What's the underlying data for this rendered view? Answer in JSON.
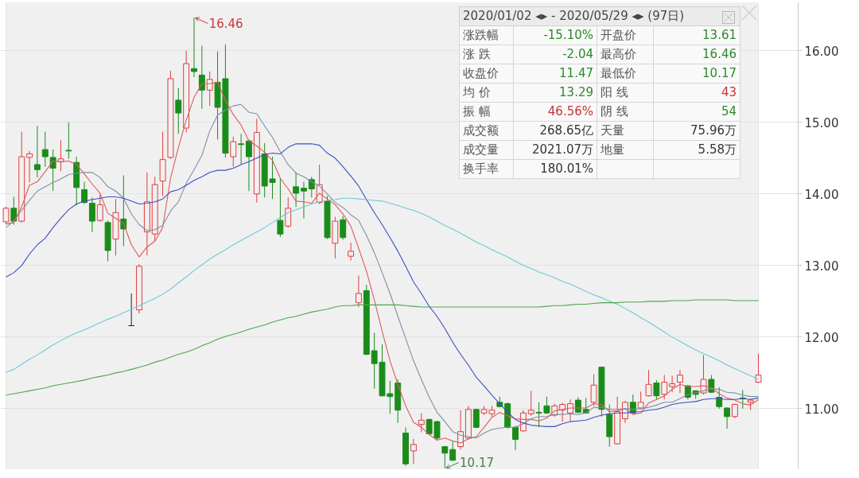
{
  "chart_data": {
    "type": "candlestick",
    "categories": [
      null,
      null,
      null,
      null,
      null,
      null,
      null,
      null,
      null,
      null,
      null,
      null,
      null,
      null,
      null,
      null,
      null,
      null,
      null,
      null,
      null,
      null,
      null,
      null,
      null,
      null,
      null,
      null,
      null,
      null,
      null,
      null,
      null,
      null,
      null,
      null,
      null,
      null,
      null,
      null,
      null,
      null,
      null,
      null,
      null,
      null,
      null,
      null,
      null,
      null,
      null,
      null,
      null,
      null,
      null,
      null,
      null,
      null,
      null,
      null,
      null,
      null,
      null,
      null,
      null,
      null,
      null,
      null,
      null,
      null,
      null,
      null,
      null,
      null,
      null,
      null,
      null,
      null,
      null,
      null,
      null,
      null,
      null,
      null,
      null,
      null,
      null,
      null,
      null,
      null,
      null,
      null,
      null,
      null,
      null,
      null,
      null
    ],
    "ohlc": [
      [
        13.61,
        13.82,
        13.58,
        13.8
      ],
      [
        13.8,
        13.96,
        13.57,
        13.62
      ],
      [
        13.62,
        14.87,
        13.6,
        14.52
      ],
      [
        14.51,
        14.6,
        14.16,
        14.56
      ],
      [
        14.41,
        14.95,
        14.23,
        14.34
      ],
      [
        14.62,
        14.87,
        14.38,
        14.52
      ],
      [
        14.51,
        14.62,
        14.04,
        14.36
      ],
      [
        14.45,
        14.75,
        14.32,
        14.49
      ],
      [
        14.61,
        15.0,
        14.49,
        14.6
      ],
      [
        14.44,
        14.52,
        13.84,
        14.09
      ],
      [
        14.06,
        14.17,
        13.86,
        13.88
      ],
      [
        13.87,
        13.95,
        13.47,
        13.62
      ],
      [
        13.63,
        13.99,
        13.61,
        13.85
      ],
      [
        13.6,
        13.63,
        13.06,
        13.21
      ],
      [
        13.37,
        13.93,
        13.14,
        13.74
      ],
      [
        13.65,
        14.26,
        13.27,
        13.51
      ],
      [
        12.16,
        12.61,
        12.16,
        12.16
      ],
      [
        12.38,
        13.02,
        12.33,
        12.99
      ],
      [
        13.47,
        14.3,
        13.14,
        13.89
      ],
      [
        13.44,
        14.24,
        13.34,
        14.13
      ],
      [
        14.18,
        14.87,
        13.97,
        14.48
      ],
      [
        14.51,
        15.72,
        14.49,
        15.61
      ],
      [
        15.31,
        15.48,
        14.84,
        15.13
      ],
      [
        14.92,
        16.0,
        14.86,
        15.82
      ],
      [
        15.75,
        16.46,
        15.63,
        15.71
      ],
      [
        15.66,
        16.07,
        15.19,
        15.45
      ],
      [
        15.45,
        15.71,
        15.23,
        15.6
      ],
      [
        15.56,
        15.99,
        14.76,
        15.21
      ],
      [
        15.61,
        16.09,
        14.51,
        14.57
      ],
      [
        14.52,
        14.8,
        14.38,
        14.73
      ],
      [
        14.7,
        14.84,
        14.42,
        14.69
      ],
      [
        14.74,
        14.76,
        14.04,
        14.52
      ],
      [
        14.0,
        15.05,
        13.88,
        14.86
      ],
      [
        14.56,
        14.71,
        13.95,
        14.11
      ],
      [
        14.21,
        14.52,
        13.93,
        14.16
      ],
      [
        13.63,
        14.21,
        13.4,
        13.44
      ],
      [
        13.55,
        13.95,
        13.53,
        13.8
      ],
      [
        14.1,
        14.3,
        13.82,
        14.01
      ],
      [
        14.08,
        14.17,
        13.66,
        14.04
      ],
      [
        14.2,
        14.24,
        13.95,
        14.07
      ],
      [
        13.88,
        14.41,
        13.86,
        14.13
      ],
      [
        13.9,
        13.97,
        13.37,
        13.39
      ],
      [
        13.31,
        13.68,
        13.1,
        13.62
      ],
      [
        13.64,
        13.69,
        13.36,
        13.39
      ],
      [
        13.13,
        13.32,
        13.07,
        13.2
      ],
      [
        12.48,
        12.86,
        12.42,
        12.61
      ],
      [
        12.65,
        12.73,
        11.75,
        11.76
      ],
      [
        11.81,
        12.06,
        11.28,
        11.63
      ],
      [
        11.65,
        11.9,
        11.17,
        11.18
      ],
      [
        11.21,
        11.39,
        10.93,
        11.17
      ],
      [
        11.36,
        11.41,
        10.8,
        10.98
      ],
      [
        10.66,
        10.74,
        10.2,
        10.23
      ],
      [
        10.41,
        10.58,
        10.23,
        10.5
      ],
      [
        10.78,
        10.94,
        10.67,
        10.84
      ],
      [
        10.85,
        10.86,
        10.64,
        10.65
      ],
      [
        10.82,
        10.83,
        10.56,
        10.59
      ],
      [
        10.47,
        10.48,
        10.17,
        10.38
      ],
      [
        10.43,
        10.54,
        10.27,
        10.28
      ],
      [
        10.47,
        10.98,
        10.43,
        10.68
      ],
      [
        10.59,
        11.04,
        10.57,
        10.99
      ],
      [
        10.99,
        11.0,
        10.73,
        10.74
      ],
      [
        10.94,
        11.04,
        10.91,
        10.99
      ],
      [
        10.93,
        11.04,
        10.89,
        10.98
      ],
      [
        11.09,
        11.17,
        11.02,
        11.03
      ],
      [
        11.07,
        11.09,
        10.72,
        10.74
      ],
      [
        10.74,
        10.76,
        10.42,
        10.57
      ],
      [
        10.69,
        10.98,
        10.68,
        10.94
      ],
      [
        10.93,
        11.25,
        10.9,
        10.98
      ],
      [
        10.95,
        11.09,
        10.74,
        10.94
      ],
      [
        11.04,
        11.17,
        10.93,
        10.94
      ],
      [
        10.91,
        11.07,
        10.89,
        11.04
      ],
      [
        10.98,
        11.08,
        10.82,
        11.06
      ],
      [
        10.94,
        11.13,
        10.83,
        11.07
      ],
      [
        11.12,
        11.16,
        10.94,
        10.95
      ],
      [
        10.99,
        11.15,
        10.93,
        10.94
      ],
      [
        11.09,
        11.48,
        11.04,
        11.33
      ],
      [
        11.58,
        11.59,
        10.89,
        10.99
      ],
      [
        10.92,
        11.06,
        10.47,
        10.61
      ],
      [
        10.51,
        11.17,
        10.5,
        10.96
      ],
      [
        10.86,
        11.11,
        10.8,
        11.09
      ],
      [
        11.09,
        11.2,
        10.93,
        10.94
      ],
      [
        11.01,
        11.24,
        10.99,
        11.09
      ],
      [
        11.18,
        11.54,
        11.17,
        11.34
      ],
      [
        11.36,
        11.4,
        11.12,
        11.18
      ],
      [
        11.2,
        11.47,
        11.13,
        11.37
      ],
      [
        11.31,
        11.46,
        11.23,
        11.35
      ],
      [
        11.37,
        11.54,
        11.22,
        11.47
      ],
      [
        11.32,
        11.33,
        11.13,
        11.16
      ],
      [
        11.25,
        11.26,
        11.14,
        11.2
      ],
      [
        11.22,
        11.75,
        11.2,
        11.41
      ],
      [
        11.41,
        11.47,
        11.22,
        11.23
      ],
      [
        11.16,
        11.3,
        11.0,
        11.03
      ],
      [
        11.01,
        11.02,
        10.72,
        10.89
      ],
      [
        10.89,
        11.07,
        10.87,
        11.06
      ],
      [
        11.15,
        11.26,
        11.0,
        11.14
      ],
      [
        11.09,
        11.14,
        10.98,
        11.12
      ],
      [
        11.37,
        11.77,
        11.36,
        11.47
      ]
    ],
    "colors": [
      "#e23c3c",
      "#1a8c1a",
      "#e23c3c",
      "#e23c3c",
      "#1a8c1a",
      "#1a8c1a",
      "#1a8c1a",
      "#e23c3c",
      "#1a8c1a",
      "#1a8c1a",
      "#1a8c1a",
      "#1a8c1a",
      "#e23c3c",
      "#1a8c1a",
      "#e23c3c",
      "#1a8c1a",
      "#222222",
      "#e23c3c",
      "#e23c3c",
      "#e23c3c",
      "#e23c3c",
      "#e23c3c",
      "#1a8c1a",
      "#e23c3c",
      "#1a8c1a",
      "#1a8c1a",
      "#e23c3c",
      "#1a8c1a",
      "#1a8c1a",
      "#e23c3c",
      "#1a8c1a",
      "#1a8c1a",
      "#e23c3c",
      "#1a8c1a",
      "#1a8c1a",
      "#1a8c1a",
      "#e23c3c",
      "#1a8c1a",
      "#1a8c1a",
      "#1a8c1a",
      "#e23c3c",
      "#1a8c1a",
      "#e23c3c",
      "#1a8c1a",
      "#e23c3c",
      "#e23c3c",
      "#1a8c1a",
      "#1a8c1a",
      "#1a8c1a",
      "#1a8c1a",
      "#1a8c1a",
      "#1a8c1a",
      "#e23c3c",
      "#e23c3c",
      "#1a8c1a",
      "#1a8c1a",
      "#1a8c1a",
      "#1a8c1a",
      "#e23c3c",
      "#e23c3c",
      "#1a8c1a",
      "#e23c3c",
      "#e23c3c",
      "#1a8c1a",
      "#1a8c1a",
      "#1a8c1a",
      "#e23c3c",
      "#e23c3c",
      "#1a8c1a",
      "#1a8c1a",
      "#e23c3c",
      "#e23c3c",
      "#e23c3c",
      "#1a8c1a",
      "#1a8c1a",
      "#e23c3c",
      "#1a8c1a",
      "#1a8c1a",
      "#e23c3c",
      "#e23c3c",
      "#1a8c1a",
      "#e23c3c",
      "#e23c3c",
      "#1a8c1a",
      "#e23c3c",
      "#e23c3c",
      "#e23c3c",
      "#1a8c1a",
      "#1a8c1a",
      "#e23c3c",
      "#1a8c1a",
      "#1a8c1a",
      "#1a8c1a",
      "#e23c3c",
      "#1a8c1a",
      "#e23c3c",
      "#e23c3c"
    ],
    "series": [
      {
        "type": "line",
        "color": "#e05a5a",
        "values": [
          13.58,
          13.6,
          13.82,
          14.12,
          14.17,
          14.31,
          14.46,
          14.45,
          14.46,
          14.41,
          14.28,
          14.14,
          14.01,
          13.73,
          13.66,
          13.59,
          13.29,
          13.12,
          13.26,
          13.34,
          13.53,
          14.22,
          14.65,
          15.03,
          15.35,
          15.54,
          15.54,
          15.56,
          15.31,
          15.11,
          14.96,
          14.74,
          14.67,
          14.58,
          14.47,
          14.22,
          14.07,
          13.9,
          13.89,
          13.87,
          14.01,
          13.93,
          13.85,
          13.72,
          13.55,
          13.24,
          12.92,
          12.52,
          12.08,
          11.67,
          11.34,
          11.04,
          10.81,
          10.74,
          10.64,
          10.56,
          10.59,
          10.55,
          10.52,
          10.58,
          10.61,
          10.74,
          10.88,
          10.95,
          10.9,
          10.86,
          10.85,
          10.85,
          10.83,
          10.87,
          10.97,
          10.99,
          11.01,
          11.01,
          11.01,
          11.07,
          11.06,
          10.96,
          10.97,
          11.0,
          10.92,
          10.94,
          11.08,
          11.13,
          11.18,
          11.27,
          11.34,
          11.31,
          11.31,
          11.32,
          11.29,
          11.21,
          11.15,
          11.12,
          11.07,
          11.05,
          11.13
        ]
      },
      {
        "type": "line",
        "color": "#7f8fa6",
        "values": [
          13.53,
          13.62,
          13.77,
          13.91,
          14.04,
          14.1,
          14.16,
          14.21,
          14.27,
          14.29,
          14.3,
          14.3,
          14.23,
          14.1,
          14.04,
          13.94,
          13.72,
          13.57,
          13.49,
          13.5,
          13.56,
          13.76,
          13.89,
          14.15,
          14.34,
          14.54,
          14.88,
          15.1,
          15.17,
          15.23,
          15.25,
          15.14,
          15.12,
          14.95,
          14.79,
          14.59,
          14.41,
          14.29,
          14.24,
          14.17,
          14.11,
          14.0,
          13.88,
          13.81,
          13.71,
          13.63,
          13.42,
          13.18,
          12.9,
          12.61,
          12.29,
          11.98,
          11.67,
          11.41,
          11.16,
          10.95,
          10.82,
          10.68,
          10.63,
          10.61,
          10.59,
          10.66,
          10.71,
          10.73,
          10.74,
          10.74,
          10.79,
          10.86,
          10.89,
          10.89,
          10.92,
          10.92,
          10.93,
          10.92,
          10.94,
          11.02,
          11.02,
          10.99,
          10.99,
          11.0,
          10.99,
          11.0,
          11.02,
          11.05,
          11.09,
          11.09,
          11.14,
          11.2,
          11.22,
          11.25,
          11.28,
          11.27,
          11.23,
          11.22,
          11.19,
          11.17,
          11.17
        ]
      },
      {
        "type": "line",
        "color": "#3d4fc4",
        "values": [
          12.84,
          12.9,
          13.0,
          13.16,
          13.29,
          13.38,
          13.53,
          13.66,
          13.78,
          13.86,
          13.9,
          13.92,
          13.94,
          13.96,
          13.96,
          13.94,
          13.9,
          13.86,
          13.87,
          13.89,
          13.93,
          14.03,
          14.06,
          14.12,
          14.19,
          14.24,
          14.3,
          14.33,
          14.33,
          14.36,
          14.41,
          14.45,
          14.5,
          14.55,
          14.57,
          14.56,
          14.65,
          14.7,
          14.7,
          14.7,
          14.68,
          14.57,
          14.5,
          14.38,
          14.25,
          14.11,
          13.92,
          13.74,
          13.57,
          13.39,
          13.2,
          12.99,
          12.77,
          12.61,
          12.43,
          12.29,
          12.12,
          11.93,
          11.76,
          11.61,
          11.44,
          11.32,
          11.19,
          11.07,
          10.95,
          10.85,
          10.8,
          10.77,
          10.76,
          10.75,
          10.75,
          10.79,
          10.82,
          10.83,
          10.84,
          10.88,
          10.91,
          10.93,
          10.94,
          10.94,
          10.95,
          10.96,
          10.98,
          10.99,
          11.02,
          11.06,
          11.08,
          11.09,
          11.1,
          11.13,
          11.14,
          11.14,
          11.13,
          11.13,
          11.14,
          11.13,
          11.15
        ]
      },
      {
        "type": "line",
        "color": "#6ccad8",
        "values": [
          11.51,
          11.55,
          11.62,
          11.69,
          11.75,
          11.82,
          11.89,
          11.95,
          12.01,
          12.06,
          12.1,
          12.15,
          12.2,
          12.25,
          12.29,
          12.34,
          12.39,
          12.44,
          12.49,
          12.54,
          12.6,
          12.67,
          12.76,
          12.84,
          12.93,
          13.01,
          13.09,
          13.16,
          13.22,
          13.29,
          13.35,
          13.41,
          13.47,
          13.53,
          13.6,
          13.67,
          13.74,
          13.78,
          13.82,
          13.86,
          13.89,
          13.91,
          13.92,
          13.94,
          13.94,
          13.93,
          13.92,
          13.91,
          13.9,
          13.87,
          13.84,
          13.8,
          13.77,
          13.73,
          13.68,
          13.62,
          13.56,
          13.51,
          13.45,
          13.39,
          13.33,
          13.28,
          13.22,
          13.17,
          13.12,
          13.06,
          13.0,
          12.96,
          12.91,
          12.87,
          12.83,
          12.78,
          12.74,
          12.69,
          12.64,
          12.59,
          12.55,
          12.5,
          12.46,
          12.4,
          12.34,
          12.27,
          12.21,
          12.14,
          12.07,
          12.0,
          11.94,
          11.88,
          11.82,
          11.77,
          11.72,
          11.67,
          11.61,
          11.56,
          11.51,
          11.46,
          11.41
        ]
      },
      {
        "type": "line",
        "color": "#4aa84a",
        "values": [
          11.19,
          11.21,
          11.23,
          11.25,
          11.27,
          11.29,
          11.32,
          11.34,
          11.36,
          11.38,
          11.4,
          11.43,
          11.45,
          11.47,
          11.5,
          11.52,
          11.55,
          11.58,
          11.61,
          11.65,
          11.68,
          11.72,
          11.76,
          11.79,
          11.83,
          11.88,
          11.92,
          11.97,
          12.01,
          12.04,
          12.07,
          12.11,
          12.14,
          12.17,
          12.21,
          12.24,
          12.27,
          12.29,
          12.32,
          12.35,
          12.37,
          12.39,
          12.42,
          12.44,
          12.44,
          12.45,
          12.45,
          12.45,
          12.45,
          12.45,
          12.45,
          12.44,
          12.43,
          12.42,
          12.42,
          12.42,
          12.42,
          12.42,
          12.42,
          12.42,
          12.42,
          12.42,
          12.42,
          12.42,
          12.42,
          12.42,
          12.42,
          12.42,
          12.42,
          12.43,
          12.44,
          12.44,
          12.45,
          12.46,
          12.46,
          12.47,
          12.48,
          12.48,
          12.48,
          12.49,
          12.49,
          12.49,
          12.5,
          12.5,
          12.5,
          12.51,
          12.51,
          12.51,
          12.52,
          12.52,
          12.52,
          12.52,
          12.52,
          12.51,
          12.51,
          12.51,
          12.51
        ]
      }
    ],
    "ylim": [
      10.16,
      16.67
    ],
    "yticks": [
      {
        "value": 11,
        "label": "11.00"
      },
      {
        "value": 12,
        "label": "12.00"
      },
      {
        "value": 13,
        "label": "13.00"
      },
      {
        "value": 14,
        "label": "14.00"
      },
      {
        "value": 15,
        "label": "15.00"
      },
      {
        "value": 16,
        "label": "16.00"
      }
    ],
    "tick_labels": "y",
    "grid": "y",
    "annotations": [
      "16.46",
      "10.17",
      "2020/01/02 ◂▸ - 2020/05/29 ◂▸ (97日)",
      "涨跌幅",
      "-15.10%",
      "开盘价",
      "13.61",
      "涨 跌",
      "-2.04",
      "最高价",
      "16.46",
      "收盘价",
      "11.47",
      "最低价",
      "10.17",
      "均 价",
      "13.29",
      "阳 线",
      "43",
      "振 幅",
      "46.56%",
      "阴 线",
      "54",
      "成交额",
      "268.65亿",
      "天量",
      "75.96万",
      "成交量",
      "2021.07万",
      "地量",
      "5.58万",
      "换手率",
      "180.01%"
    ]
  }
}
